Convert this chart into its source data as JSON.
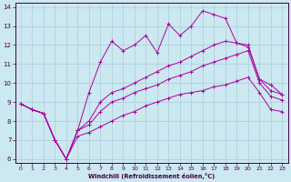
{
  "xlabel": "Windchill (Refroidissement éolien,°C)",
  "bg_color": "#cce8f0",
  "grid_color": "#aaccdd",
  "line_color": "#aa00aa",
  "xlim": [
    -0.5,
    23.5
  ],
  "ylim": [
    5.8,
    14.2
  ],
  "xticks": [
    0,
    1,
    2,
    3,
    4,
    5,
    6,
    7,
    8,
    9,
    10,
    11,
    12,
    13,
    14,
    15,
    16,
    17,
    18,
    19,
    20,
    21,
    22,
    23
  ],
  "yticks": [
    6,
    7,
    8,
    9,
    10,
    11,
    12,
    13,
    14
  ],
  "line_jagged_x": [
    0,
    1,
    2,
    3,
    4,
    5,
    6,
    7,
    8,
    9,
    10,
    11,
    12,
    13,
    14,
    15,
    16,
    17,
    18,
    19,
    20,
    21,
    22,
    23
  ],
  "line_jagged_y": [
    8.9,
    8.6,
    8.4,
    7.0,
    6.0,
    7.5,
    9.5,
    11.1,
    12.2,
    11.7,
    12.0,
    12.5,
    11.6,
    13.1,
    12.5,
    13.0,
    13.8,
    13.6,
    13.4,
    12.1,
    11.9,
    10.2,
    9.9,
    9.4
  ],
  "line_upper_x": [
    0,
    1,
    2,
    3,
    4,
    5,
    6,
    7,
    8,
    9,
    10,
    11,
    12,
    13,
    14,
    15,
    16,
    17,
    18,
    19,
    20,
    21,
    22,
    23
  ],
  "line_upper_y": [
    8.9,
    8.6,
    8.4,
    7.0,
    6.0,
    7.5,
    8.0,
    9.0,
    9.5,
    9.7,
    10.0,
    10.3,
    10.6,
    10.9,
    11.1,
    11.4,
    11.7,
    12.0,
    12.2,
    12.1,
    12.0,
    10.2,
    9.6,
    9.4
  ],
  "line_mid_x": [
    0,
    1,
    2,
    3,
    4,
    5,
    6,
    7,
    8,
    9,
    10,
    11,
    12,
    13,
    14,
    15,
    16,
    17,
    18,
    19,
    20,
    21,
    22,
    23
  ],
  "line_mid_y": [
    8.9,
    8.6,
    8.4,
    7.0,
    6.0,
    7.5,
    7.8,
    8.5,
    9.0,
    9.2,
    9.5,
    9.7,
    9.9,
    10.2,
    10.4,
    10.6,
    10.9,
    11.1,
    11.3,
    11.5,
    11.7,
    10.0,
    9.3,
    9.1
  ],
  "line_lower_x": [
    0,
    1,
    2,
    3,
    4,
    5,
    6,
    7,
    8,
    9,
    10,
    11,
    12,
    13,
    14,
    15,
    16,
    17,
    18,
    19,
    20,
    21,
    22,
    23
  ],
  "line_lower_y": [
    8.9,
    8.6,
    8.4,
    7.0,
    6.0,
    7.2,
    7.4,
    7.7,
    8.0,
    8.3,
    8.5,
    8.8,
    9.0,
    9.2,
    9.4,
    9.5,
    9.6,
    9.8,
    9.9,
    10.1,
    10.3,
    9.5,
    8.6,
    8.5
  ]
}
